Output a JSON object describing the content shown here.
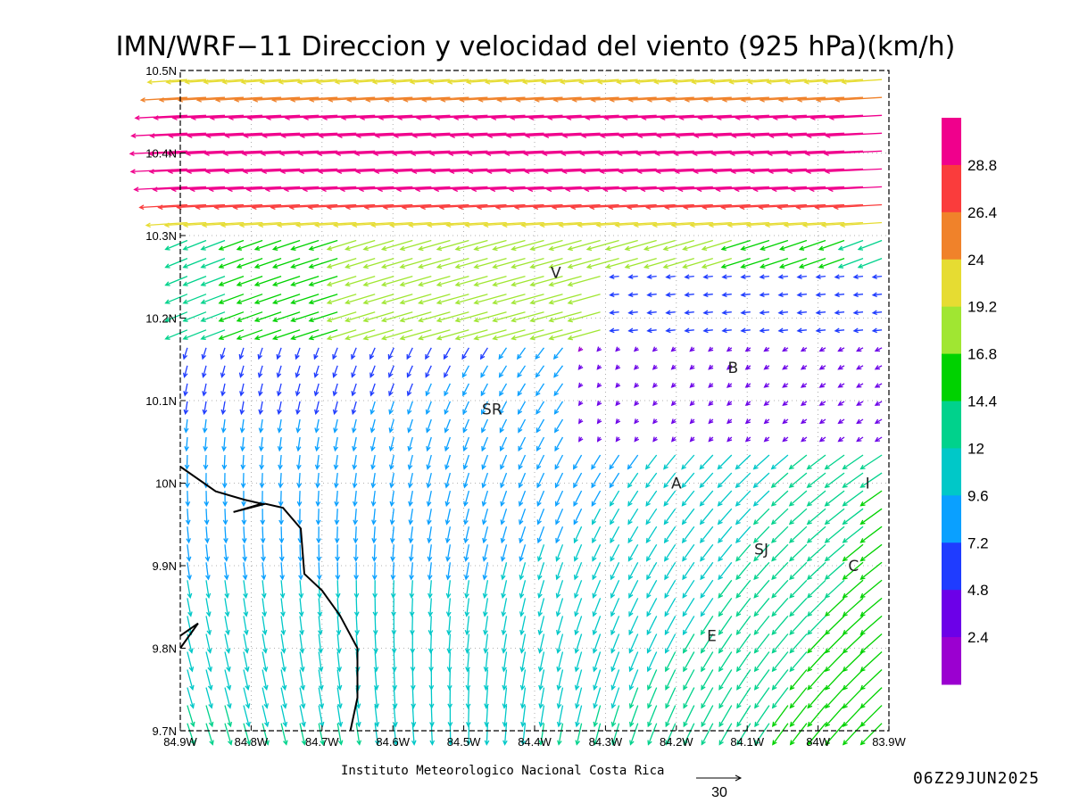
{
  "title": "IMN/WRF−11 Direccion y velocidad del viento (925 hPa)(km/h)",
  "footer": {
    "institution": "Instituto Meteorologico Nacional Costa Rica",
    "timestamp": "06Z29JUN2025",
    "reference_vector_value": "30"
  },
  "chart_data": {
    "type": "vector_field",
    "variable": "Direccion y velocidad del viento",
    "level": "925 hPa",
    "units": "km/h",
    "x_ticks": [
      "84.9W",
      "84.8W",
      "84.7W",
      "84.6W",
      "84.5W",
      "84.4W",
      "84.3W",
      "84.2W",
      "84.1W",
      "84W",
      "83.9W"
    ],
    "y_ticks": [
      "10.5N",
      "10.4N",
      "10.3N",
      "10.2N",
      "10.1N",
      "10N",
      "9.9N",
      "9.8N",
      "9.7N"
    ],
    "lon_range": [
      -84.9,
      -83.9
    ],
    "lat_range": [
      9.7,
      10.5
    ],
    "grid": "dotted",
    "colorbar": {
      "labels": [
        "2.4",
        "4.8",
        "7.2",
        "9.6",
        "12",
        "14.4",
        "16.8",
        "19.2",
        "24",
        "26.4",
        "28.8"
      ],
      "colors": [
        "#9b00d0",
        "#6c00e8",
        "#1f3cff",
        "#0aa0ff",
        "#00c8c8",
        "#00d28c",
        "#00d200",
        "#a0e632",
        "#e6dc32",
        "#f0822a",
        "#fa3c3c",
        "#f0008c"
      ]
    },
    "reference_vector_kmh": 30,
    "locations": [
      {
        "label": "V",
        "lon": -84.37,
        "lat": 10.255
      },
      {
        "label": "B",
        "lon": -84.12,
        "lat": 10.14
      },
      {
        "label": "SR",
        "lon": -84.46,
        "lat": 10.09
      },
      {
        "label": "A",
        "lon": -84.2,
        "lat": 10.0
      },
      {
        "label": "I",
        "lon": -83.93,
        "lat": 10.0
      },
      {
        "label": "SJ",
        "lon": -84.08,
        "lat": 9.92
      },
      {
        "label": "C",
        "lon": -83.95,
        "lat": 9.9
      },
      {
        "label": "E",
        "lon": -84.15,
        "lat": 9.815
      }
    ],
    "coastline": [
      [
        -84.9,
        10.02
      ],
      [
        -84.85,
        9.99
      ],
      [
        -84.81,
        9.98
      ],
      [
        -84.785,
        9.975
      ],
      [
        -84.825,
        9.965
      ],
      [
        -84.78,
        9.975
      ],
      [
        -84.755,
        9.97
      ],
      [
        -84.73,
        9.945
      ],
      [
        -84.725,
        9.89
      ],
      [
        -84.7,
        9.87
      ],
      [
        -84.675,
        9.84
      ],
      [
        -84.65,
        9.8
      ],
      [
        -84.65,
        9.74
      ],
      [
        -84.66,
        9.7
      ]
    ],
    "island": [
      [
        -84.9,
        9.8
      ],
      [
        -84.875,
        9.83
      ],
      [
        -84.9,
        9.815
      ]
    ]
  }
}
